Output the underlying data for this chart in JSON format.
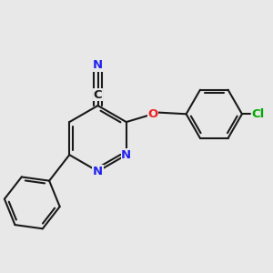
{
  "bg_color": "#e8e8e8",
  "bond_color": "#1a1a1a",
  "N_color": "#2222ee",
  "O_color": "#ee2222",
  "Cl_color": "#00aa00",
  "C_color": "#1a1a1a",
  "lw": 1.5,
  "figsize": [
    3.0,
    3.0
  ],
  "dpi": 100,
  "xlim": [
    -2.2,
    4.8
  ],
  "ylim": [
    -2.5,
    3.2
  ]
}
